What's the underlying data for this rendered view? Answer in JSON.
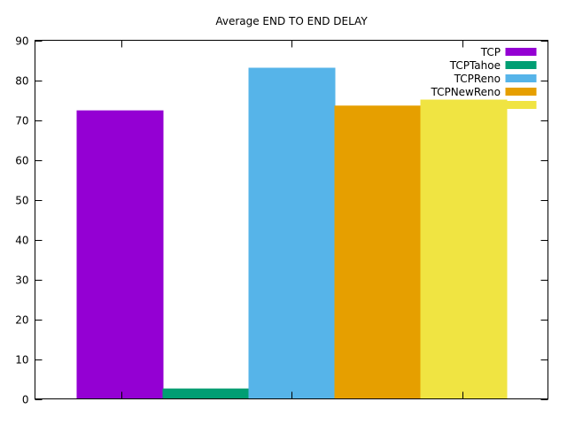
{
  "chart_data": {
    "type": "bar",
    "title": "Average END TO END DELAY",
    "xlabel": "",
    "ylabel": "",
    "ylim": [
      0,
      90
    ],
    "yticks": [
      0,
      10,
      20,
      30,
      40,
      50,
      60,
      70,
      80,
      90
    ],
    "yticks_right": [
      0,
      10,
      20,
      30,
      40,
      50,
      60,
      70,
      80,
      90
    ],
    "grid": false,
    "legend_position": "top-right",
    "series": [
      {
        "name": "TCP",
        "value": 72.3,
        "color": "#9400d3"
      },
      {
        "name": "TCPTahoe",
        "value": 2.5,
        "color": "#009e73"
      },
      {
        "name": "TCPReno",
        "value": 83.0,
        "color": "#56b4e9"
      },
      {
        "name": "TCPNewReno",
        "value": 73.5,
        "color": "#e69f00"
      },
      {
        "name": "",
        "value": 75.0,
        "color": "#f0e442"
      }
    ]
  }
}
